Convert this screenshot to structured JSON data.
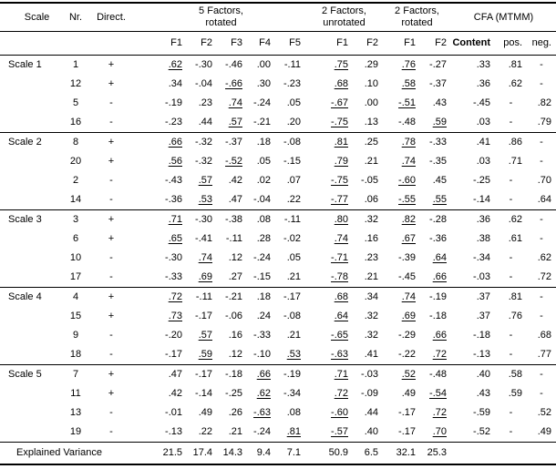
{
  "table": {
    "columns": {
      "scale": "Scale",
      "nr": "Nr.",
      "direct": "Direct."
    },
    "groups": [
      {
        "label": "5 Factors,\nrotated",
        "cols": [
          "F1",
          "F2",
          "F3",
          "F4",
          "F5"
        ]
      },
      {
        "label": "2 Factors,\nunrotated",
        "cols": [
          "F1",
          "F2"
        ]
      },
      {
        "label": "2 Factors,\nrotated",
        "cols": [
          "F1",
          "F2"
        ]
      },
      {
        "label": "CFA (MTMM)",
        "cols": [
          "Content",
          "pos.",
          "neg."
        ]
      }
    ],
    "rows": [
      {
        "scale": "Scale 1",
        "nr": "1",
        "direct": "+",
        "cells": [
          {
            "v": ".62",
            "u": true
          },
          {
            "v": "-.30"
          },
          {
            "v": "-.46"
          },
          {
            "v": ".00"
          },
          {
            "v": "-.11"
          },
          {
            "v": ".75",
            "u": true
          },
          {
            "v": ".29"
          },
          {
            "v": ".76",
            "u": true
          },
          {
            "v": "-.27"
          },
          {
            "v": ".33"
          },
          {
            "v": ".81"
          },
          {
            "v": "-"
          }
        ]
      },
      {
        "scale": "",
        "nr": "12",
        "direct": "+",
        "cells": [
          {
            "v": ".34"
          },
          {
            "v": "-.04"
          },
          {
            "v": "-.66",
            "u": true
          },
          {
            "v": ".30"
          },
          {
            "v": "-.23"
          },
          {
            "v": ".68",
            "u": true
          },
          {
            "v": ".10"
          },
          {
            "v": ".58",
            "u": true
          },
          {
            "v": "-.37"
          },
          {
            "v": ".36"
          },
          {
            "v": ".62"
          },
          {
            "v": "-"
          }
        ]
      },
      {
        "scale": "",
        "nr": "5",
        "direct": "-",
        "cells": [
          {
            "v": "-.19"
          },
          {
            "v": ".23"
          },
          {
            "v": ".74",
            "u": true
          },
          {
            "v": "-.24"
          },
          {
            "v": ".05"
          },
          {
            "v": "-.67",
            "u": true
          },
          {
            "v": ".00"
          },
          {
            "v": "-.51",
            "u": true
          },
          {
            "v": ".43"
          },
          {
            "v": "-.45"
          },
          {
            "v": "-"
          },
          {
            "v": ".82"
          }
        ]
      },
      {
        "scale": "",
        "nr": "16",
        "direct": "-",
        "cells": [
          {
            "v": "-.23"
          },
          {
            "v": ".44"
          },
          {
            "v": ".57",
            "u": true
          },
          {
            "v": "-.21"
          },
          {
            "v": ".20"
          },
          {
            "v": "-.75",
            "u": true
          },
          {
            "v": ".13"
          },
          {
            "v": "-.48"
          },
          {
            "v": ".59",
            "u": true
          },
          {
            "v": ".03"
          },
          {
            "v": "-"
          },
          {
            "v": ".79"
          }
        ]
      },
      {
        "scale": "Scale 2",
        "nr": "8",
        "direct": "+",
        "cells": [
          {
            "v": ".66",
            "u": true
          },
          {
            "v": "-.32"
          },
          {
            "v": "-.37"
          },
          {
            "v": ".18"
          },
          {
            "v": "-.08"
          },
          {
            "v": ".81",
            "u": true
          },
          {
            "v": ".25"
          },
          {
            "v": ".78",
            "u": true
          },
          {
            "v": "-.33"
          },
          {
            "v": ".41"
          },
          {
            "v": ".86"
          },
          {
            "v": "-"
          }
        ]
      },
      {
        "scale": "",
        "nr": "20",
        "direct": "+",
        "cells": [
          {
            "v": ".56",
            "u": true
          },
          {
            "v": "-.32"
          },
          {
            "v": "-.52",
            "u": true
          },
          {
            "v": ".05"
          },
          {
            "v": "-.15"
          },
          {
            "v": ".79",
            "u": true
          },
          {
            "v": ".21"
          },
          {
            "v": ".74",
            "u": true
          },
          {
            "v": "-.35"
          },
          {
            "v": ".03"
          },
          {
            "v": ".71"
          },
          {
            "v": "-"
          }
        ]
      },
      {
        "scale": "",
        "nr": "2",
        "direct": "-",
        "cells": [
          {
            "v": "-.43"
          },
          {
            "v": ".57",
            "u": true
          },
          {
            "v": ".42"
          },
          {
            "v": ".02"
          },
          {
            "v": ".07"
          },
          {
            "v": "-.75",
            "u": true
          },
          {
            "v": "-.05"
          },
          {
            "v": "-.60",
            "u": true
          },
          {
            "v": ".45"
          },
          {
            "v": "-.25"
          },
          {
            "v": "-"
          },
          {
            "v": ".70"
          }
        ]
      },
      {
        "scale": "",
        "nr": "14",
        "direct": "-",
        "cells": [
          {
            "v": "-.36"
          },
          {
            "v": ".53",
            "u": true
          },
          {
            "v": ".47"
          },
          {
            "v": "-.04"
          },
          {
            "v": ".22"
          },
          {
            "v": "-.77",
            "u": true
          },
          {
            "v": ".06"
          },
          {
            "v": "-.55",
            "u": true
          },
          {
            "v": ".55",
            "u": true
          },
          {
            "v": "-.14"
          },
          {
            "v": "-"
          },
          {
            "v": ".64"
          }
        ]
      },
      {
        "scale": "Scale 3",
        "nr": "3",
        "direct": "+",
        "cells": [
          {
            "v": ".71",
            "u": true
          },
          {
            "v": "-.30"
          },
          {
            "v": "-.38"
          },
          {
            "v": ".08"
          },
          {
            "v": "-.11"
          },
          {
            "v": ".80",
            "u": true
          },
          {
            "v": ".32"
          },
          {
            "v": ".82",
            "u": true
          },
          {
            "v": "-.28"
          },
          {
            "v": ".36"
          },
          {
            "v": ".62"
          },
          {
            "v": "-"
          }
        ]
      },
      {
        "scale": "",
        "nr": "6",
        "direct": "+",
        "cells": [
          {
            "v": ".65",
            "u": true
          },
          {
            "v": "-.41"
          },
          {
            "v": "-.11"
          },
          {
            "v": ".28"
          },
          {
            "v": "-.02"
          },
          {
            "v": ".74",
            "u": true
          },
          {
            "v": ".16"
          },
          {
            "v": ".67",
            "u": true
          },
          {
            "v": "-.36"
          },
          {
            "v": ".38"
          },
          {
            "v": ".61"
          },
          {
            "v": "-"
          }
        ]
      },
      {
        "scale": "",
        "nr": "10",
        "direct": "-",
        "cells": [
          {
            "v": "-.30"
          },
          {
            "v": ".74",
            "u": true
          },
          {
            "v": ".12"
          },
          {
            "v": "-.24"
          },
          {
            "v": ".05"
          },
          {
            "v": "-.71",
            "u": true
          },
          {
            "v": ".23"
          },
          {
            "v": "-.39"
          },
          {
            "v": ".64",
            "u": true
          },
          {
            "v": "-.34"
          },
          {
            "v": "-"
          },
          {
            "v": ".62"
          }
        ]
      },
      {
        "scale": "",
        "nr": "17",
        "direct": "-",
        "cells": [
          {
            "v": "-.33"
          },
          {
            "v": ".69",
            "u": true
          },
          {
            "v": ".27"
          },
          {
            "v": "-.15"
          },
          {
            "v": ".21"
          },
          {
            "v": "-.78",
            "u": true
          },
          {
            "v": ".21"
          },
          {
            "v": "-.45"
          },
          {
            "v": ".66",
            "u": true
          },
          {
            "v": "-.03"
          },
          {
            "v": "-"
          },
          {
            "v": ".72"
          }
        ]
      },
      {
        "scale": "Scale 4",
        "nr": "4",
        "direct": "+",
        "cells": [
          {
            "v": ".72",
            "u": true
          },
          {
            "v": "-.11"
          },
          {
            "v": "-.21"
          },
          {
            "v": ".18"
          },
          {
            "v": "-.17"
          },
          {
            "v": ".68",
            "u": true
          },
          {
            "v": ".34"
          },
          {
            "v": ".74",
            "u": true
          },
          {
            "v": "-.19"
          },
          {
            "v": ".37"
          },
          {
            "v": ".81"
          },
          {
            "v": "-"
          }
        ]
      },
      {
        "scale": "",
        "nr": "15",
        "direct": "+",
        "cells": [
          {
            "v": ".73",
            "u": true
          },
          {
            "v": "-.17"
          },
          {
            "v": "-.06"
          },
          {
            "v": ".24"
          },
          {
            "v": "-.08"
          },
          {
            "v": ".64",
            "u": true
          },
          {
            "v": ".32"
          },
          {
            "v": ".69",
            "u": true
          },
          {
            "v": "-.18"
          },
          {
            "v": ".37"
          },
          {
            "v": ".76"
          },
          {
            "v": "-"
          }
        ]
      },
      {
        "scale": "",
        "nr": "9",
        "direct": "-",
        "cells": [
          {
            "v": "-.20"
          },
          {
            "v": ".57",
            "u": true
          },
          {
            "v": ".16"
          },
          {
            "v": "-.33"
          },
          {
            "v": ".21"
          },
          {
            "v": "-.65",
            "u": true
          },
          {
            "v": ".32"
          },
          {
            "v": "-.29"
          },
          {
            "v": ".66",
            "u": true
          },
          {
            "v": "-.18"
          },
          {
            "v": "-"
          },
          {
            "v": ".68"
          }
        ]
      },
      {
        "scale": "",
        "nr": "18",
        "direct": "-",
        "cells": [
          {
            "v": "-.17"
          },
          {
            "v": ".59",
            "u": true
          },
          {
            "v": ".12"
          },
          {
            "v": "-.10"
          },
          {
            "v": ".53",
            "u": true
          },
          {
            "v": "-.63",
            "u": true
          },
          {
            "v": ".41"
          },
          {
            "v": "-.22"
          },
          {
            "v": ".72",
            "u": true
          },
          {
            "v": "-.13"
          },
          {
            "v": "-"
          },
          {
            "v": ".77"
          }
        ]
      },
      {
        "scale": "Scale 5",
        "nr": "7",
        "direct": "+",
        "cells": [
          {
            "v": ".47"
          },
          {
            "v": "-.17"
          },
          {
            "v": "-.18"
          },
          {
            "v": ".66",
            "u": true
          },
          {
            "v": "-.19"
          },
          {
            "v": ".71",
            "u": true
          },
          {
            "v": "-.03"
          },
          {
            "v": ".52",
            "u": true
          },
          {
            "v": "-.48"
          },
          {
            "v": ".40"
          },
          {
            "v": ".58"
          },
          {
            "v": "-"
          }
        ]
      },
      {
        "scale": "",
        "nr": "11",
        "direct": "+",
        "cells": [
          {
            "v": ".42"
          },
          {
            "v": "-.14"
          },
          {
            "v": "-.25"
          },
          {
            "v": ".62",
            "u": true
          },
          {
            "v": "-.34"
          },
          {
            "v": ".72",
            "u": true
          },
          {
            "v": "-.09"
          },
          {
            "v": ".49"
          },
          {
            "v": "-.54",
            "u": true
          },
          {
            "v": ".43"
          },
          {
            "v": ".59"
          },
          {
            "v": "-"
          }
        ]
      },
      {
        "scale": "",
        "nr": "13",
        "direct": "-",
        "cells": [
          {
            "v": "-.01"
          },
          {
            "v": ".49"
          },
          {
            "v": ".26"
          },
          {
            "v": "-.63",
            "u": true
          },
          {
            "v": ".08"
          },
          {
            "v": "-.60",
            "u": true
          },
          {
            "v": ".44"
          },
          {
            "v": "-.17"
          },
          {
            "v": ".72",
            "u": true
          },
          {
            "v": "-.59"
          },
          {
            "v": "-"
          },
          {
            "v": ".52"
          }
        ]
      },
      {
        "scale": "",
        "nr": "19",
        "direct": "-",
        "cells": [
          {
            "v": "-.13"
          },
          {
            "v": ".22"
          },
          {
            "v": ".21"
          },
          {
            "v": "-.24"
          },
          {
            "v": ".81",
            "u": true
          },
          {
            "v": "-.57",
            "u": true
          },
          {
            "v": ".40"
          },
          {
            "v": "-.17"
          },
          {
            "v": ".70",
            "u": true
          },
          {
            "v": "-.52"
          },
          {
            "v": "-"
          },
          {
            "v": ".49"
          }
        ]
      }
    ],
    "footer": {
      "label": "Explained Variance",
      "values": [
        "21.5",
        "17.4",
        "14.3",
        "9.4",
        "7.1",
        "50.9",
        "6.5",
        "32.1",
        "25.3",
        "",
        "",
        ""
      ]
    }
  }
}
